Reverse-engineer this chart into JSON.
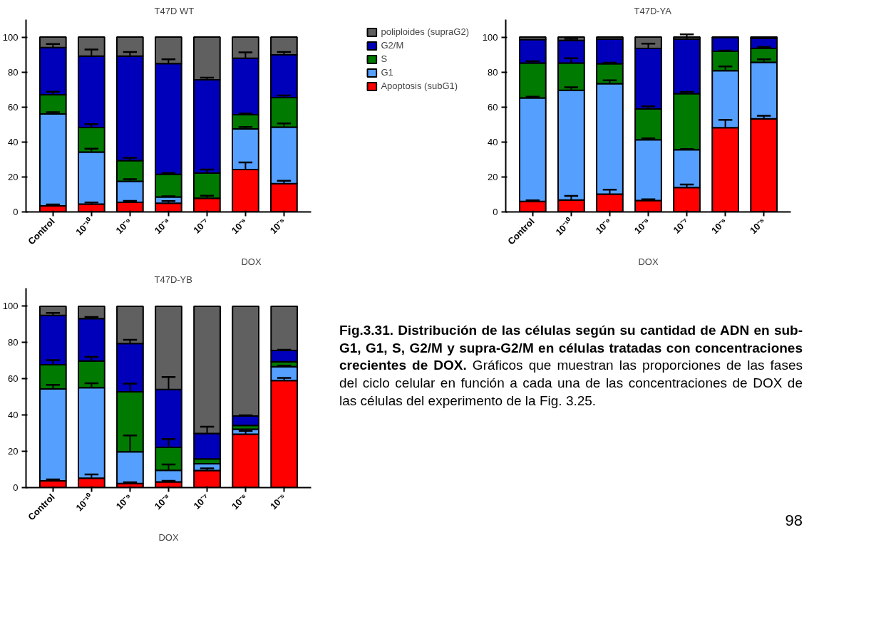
{
  "chart_data": [
    {
      "type": "bar",
      "title": "T47D WT",
      "xlabel": "DOX",
      "stacked": true,
      "legend": "right",
      "categories": [
        "Control",
        "10⁻¹⁰",
        "10⁻⁹",
        "10⁻⁸",
        "10⁻⁷",
        "10⁻⁶",
        "10⁻⁵"
      ],
      "ylim": [
        0,
        110
      ],
      "yticks": [
        0,
        20,
        40,
        60,
        80,
        100
      ],
      "series": [
        {
          "name": "Apoptosis (subG1)",
          "color": "#ff0000",
          "values": [
            3.5,
            4.5,
            5.5,
            5,
            7.8,
            24.2,
            16.2
          ],
          "errors": [
            [
              3.5,
              4.3
            ],
            [
              4.5,
              5.4
            ],
            [
              5.5,
              6.3
            ],
            [
              5,
              6.2
            ],
            [
              7.8,
              9.3
            ],
            [
              24.2,
              28.3
            ],
            [
              16.2,
              17.8
            ]
          ]
        },
        {
          "name": "G1",
          "color": "#55a0ff",
          "values": [
            52.5,
            29.7,
            12,
            3.6,
            null,
            23.3,
            32.3
          ],
          "errors": [
            [
              56,
              57
            ],
            [
              34.2,
              36.2
            ],
            [
              17.5,
              18.7
            ],
            [
              8.6,
              9
            ],
            null,
            [
              47.5,
              48.6
            ],
            [
              48.5,
              50.6
            ]
          ]
        },
        {
          "name": "S",
          "color": "#007a00",
          "values": [
            11,
            14.1,
            11.8,
            12.9,
            14.4,
            8.1,
            16.9
          ],
          "errors": [
            [
              67,
              68.8
            ],
            [
              48.3,
              50.2
            ],
            [
              29.3,
              31
            ],
            [
              21.5,
              22.2
            ],
            [
              22.2,
              24.2
            ],
            [
              55.6,
              56.3
            ],
            [
              65.4,
              66.6
            ]
          ]
        },
        {
          "name": "G2/M",
          "color": "#0000bb",
          "values": [
            27,
            40.8,
            59.8,
            63.3,
            53.4,
            32.3,
            24.4
          ],
          "errors": [
            [
              94,
              96
            ],
            [
              89.1,
              92.9
            ],
            [
              89.1,
              91.5
            ],
            [
              84.8,
              87.3
            ],
            [
              75.6,
              76.8
            ],
            [
              87.9,
              91.3
            ],
            [
              89.8,
              91.5
            ]
          ]
        },
        {
          "name": "poliploides (supraG2)",
          "color": "#606060",
          "values": [
            6,
            10.9,
            10.9,
            15.2,
            24.4,
            12.1,
            10.2
          ]
        }
      ]
    },
    {
      "type": "bar",
      "title": "T47D-YA",
      "xlabel": "DOX",
      "stacked": true,
      "categories": [
        "Control",
        "10⁻¹⁰",
        "10⁻⁹",
        "10⁻⁸",
        "10⁻⁷",
        "10⁻⁶",
        "10⁻⁵"
      ],
      "ylim": [
        0,
        110
      ],
      "yticks": [
        0,
        20,
        40,
        60,
        80,
        100
      ],
      "series": [
        {
          "color": "#ff0000",
          "values": [
            6,
            6.8,
            10.2,
            6.5,
            14,
            48.2,
            53.3
          ],
          "errors": [
            [
              6,
              6.6
            ],
            [
              6.8,
              9.2
            ],
            [
              10.2,
              12.7
            ],
            [
              6.5,
              7.2
            ],
            [
              14,
              15.7
            ],
            [
              48.2,
              52.7
            ],
            [
              53.3,
              55
            ]
          ]
        },
        {
          "color": "#55a0ff",
          "values": [
            59.2,
            62.8,
            63.1,
            34.7,
            21.5,
            32.6,
            32.3
          ],
          "errors": [
            [
              65.2,
              65.9
            ],
            [
              69.6,
              71.3
            ],
            [
              73.3,
              75.3
            ],
            [
              41.2,
              42.1
            ],
            [
              35.5,
              36
            ],
            [
              80.8,
              83.2
            ],
            [
              85.6,
              87.3
            ]
          ]
        },
        {
          "color": "#007a00",
          "values": [
            19.9,
            15.5,
            11.4,
            17.7,
            32.1,
            11.1,
            7.9
          ],
          "errors": [
            [
              85.1,
              86.2
            ],
            [
              85.1,
              87.9
            ],
            [
              84.7,
              85.4
            ],
            [
              58.9,
              60.4
            ],
            [
              67.6,
              68.6
            ],
            [
              91.9,
              92.3
            ],
            [
              93.5,
              94.3
            ]
          ]
        },
        {
          "color": "#0000bb",
          "values": [
            13.5,
            13,
            14.2,
            34.6,
            31.3,
            7.8,
            5.7
          ],
          "errors": [
            null,
            [
              98.1,
              99
            ],
            null,
            [
              93.5,
              96.2
            ],
            [
              98.9,
              101.5
            ],
            null,
            null
          ]
        },
        {
          "color": "#606060",
          "values": [
            1.4,
            1.9,
            1.1,
            6.5,
            1.1,
            0.3,
            0.8
          ]
        }
      ]
    },
    {
      "type": "bar",
      "title": "T47D-YB",
      "xlabel": "DOX",
      "stacked": true,
      "categories": [
        "Control",
        "10⁻¹⁰",
        "10⁻⁹",
        "10⁻⁸",
        "10⁻⁷",
        "10⁻⁶",
        "10⁻⁵"
      ],
      "ylim": [
        0,
        110
      ],
      "yticks": [
        0,
        20,
        40,
        60,
        80,
        100
      ],
      "series": [
        {
          "color": "#ff0000",
          "values": [
            3.7,
            5.2,
            2.3,
            3.1,
            9.4,
            29.5,
            59
          ],
          "errors": [
            [
              3.7,
              4.5
            ],
            [
              5.2,
              7.3
            ],
            [
              2.3,
              2.9
            ],
            [
              3.1,
              3.7
            ],
            [
              9.4,
              10.6
            ],
            [
              29.5,
              31.2
            ],
            [
              59,
              60.5
            ]
          ]
        },
        {
          "color": "#55a0ff",
          "values": [
            50.7,
            49.9,
            17.4,
            6.4,
            3.8,
            2.7,
            7.7
          ],
          "errors": [
            [
              54.4,
              56.7
            ],
            [
              55.1,
              57.6
            ],
            [
              19.7,
              28.8
            ],
            [
              9.5,
              12.8
            ],
            null,
            null,
            [
              66.7,
              67.3
            ]
          ]
        },
        {
          "color": "#007a00",
          "values": [
            13.4,
            14.7,
            33.1,
            12.7,
            2.6,
            2.1,
            2.7
          ],
          "errors": [
            [
              67.8,
              70.3
            ],
            [
              69.8,
              72.1
            ],
            [
              52.8,
              57.4
            ],
            [
              22.2,
              26.8
            ],
            null,
            null,
            null
          ]
        },
        {
          "color": "#0000bb",
          "values": [
            27.2,
            23.4,
            26.7,
            31.9,
            14.1,
            5.2,
            6.2
          ],
          "errors": [
            [
              95,
              96.3
            ],
            [
              93.2,
              94.1
            ],
            [
              79.5,
              81.5
            ],
            [
              54.1,
              61
            ],
            [
              29.9,
              33.6
            ],
            [
              39.5,
              39.9
            ],
            [
              75.6,
              76
            ]
          ]
        },
        {
          "color": "#606060",
          "values": [
            5,
            6.8,
            20.5,
            45.9,
            70.1,
            60.5,
            24.4
          ]
        }
      ]
    },
    {
      "type": "other",
      "annotations": [
        "Fig.3.31. Distribución de las células según su cantidad de ADN en sub-G1, G1, S, G2/M y supra-G2/M en células tratadas con concentraciones crecientes de DOX.",
        "Gráficos que muestran las proporciones de las fases del ciclo celular en función a cada una de las concentraciones de DOX de las células del experimento de la Fig. 3.25.",
        "98"
      ]
    }
  ]
}
